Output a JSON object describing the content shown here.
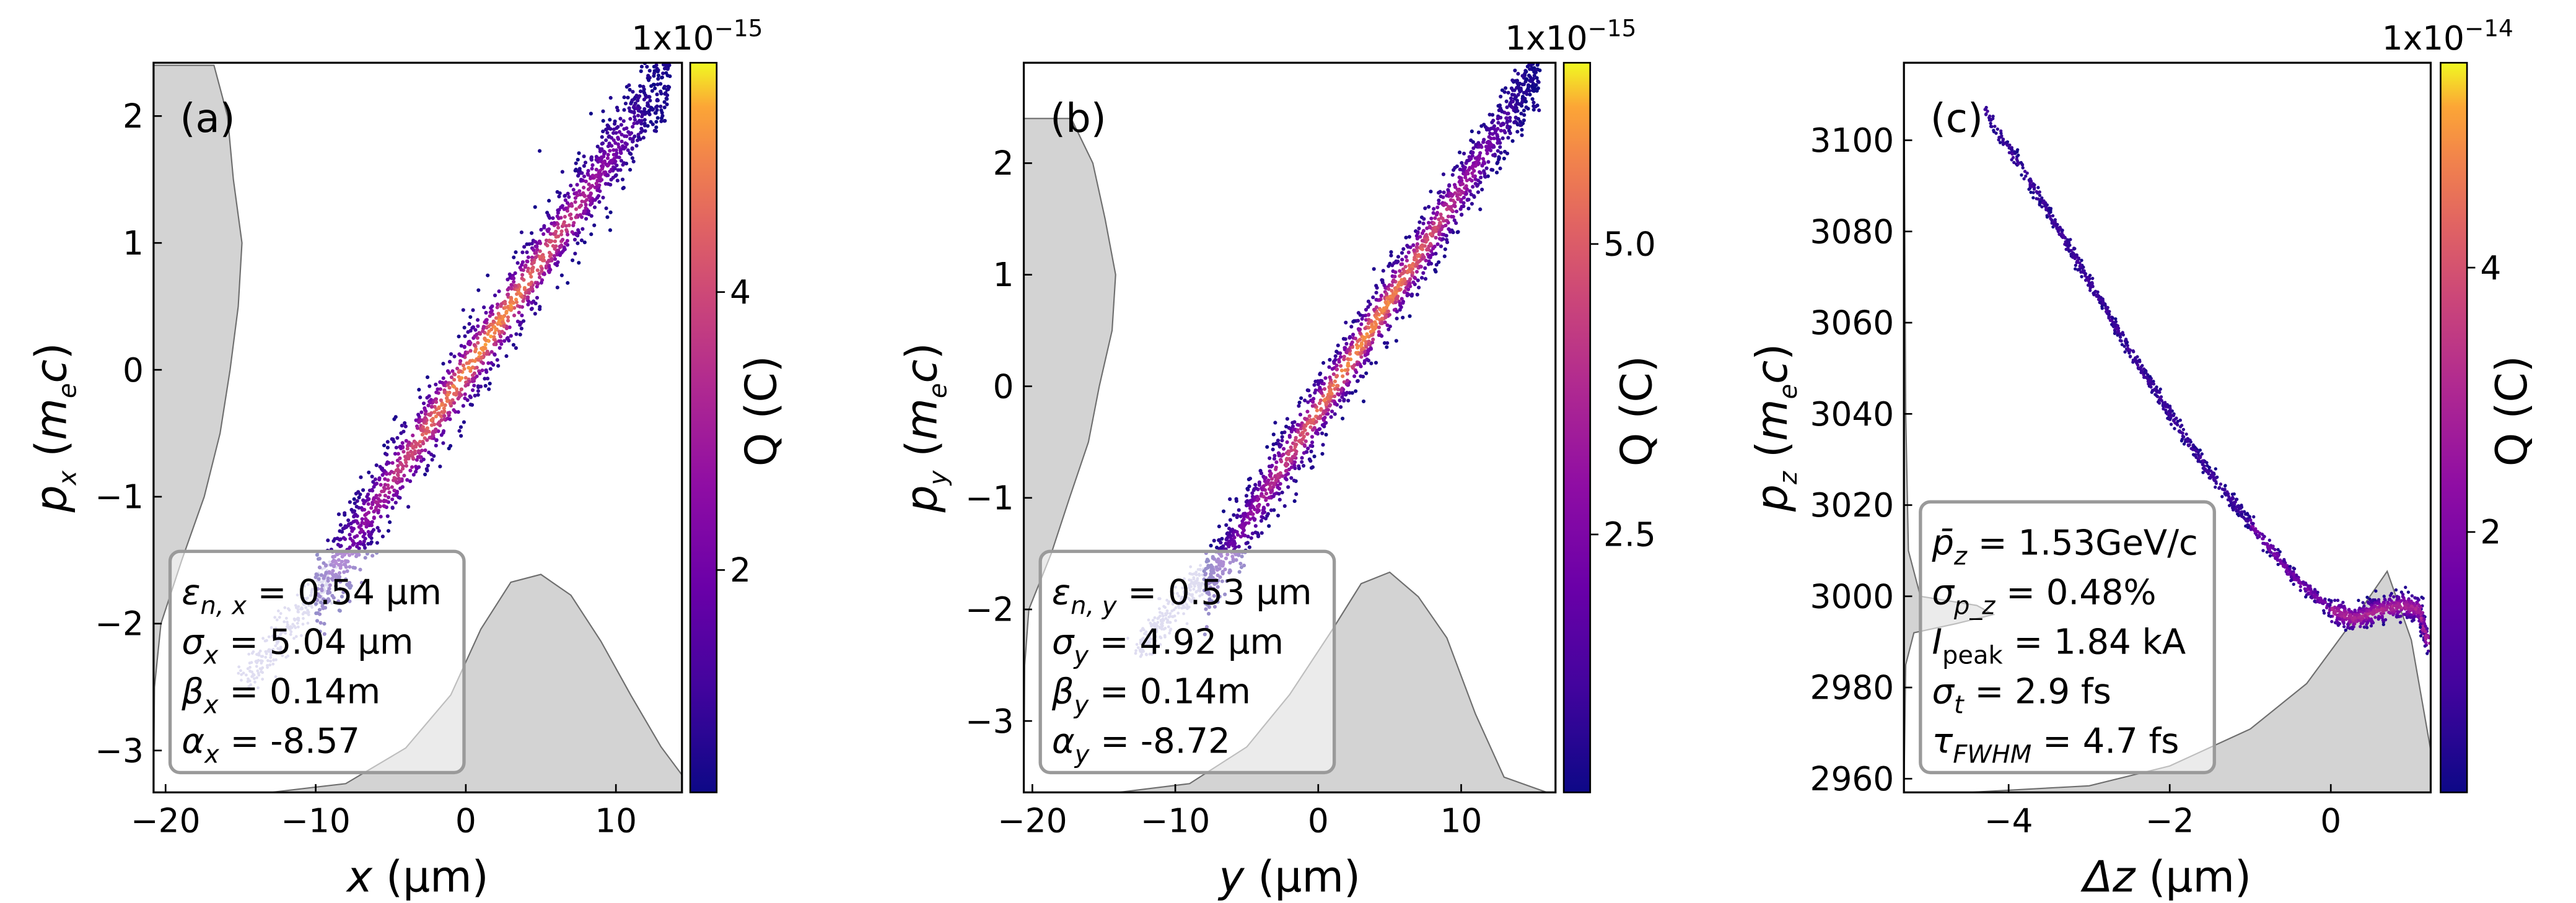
{
  "colors": {
    "hist_fill": "#d3d3d3",
    "hist_line": "#6e6e6e",
    "tail": "#b9b4e0",
    "box_edge": "#9a9a9a"
  },
  "chart_data": [
    {
      "type": "scatter",
      "panel_label": "(a)",
      "xlabel": {
        "var": "x",
        "unit": " (µm)"
      },
      "ylabel": {
        "var": "p",
        "sub": "x",
        "unit_pre": " (",
        "unit_var": "m",
        "unit_sub": "e",
        "unit_var2": "c",
        "unit_post": ")"
      },
      "xlim": [
        -20.8,
        14.4
      ],
      "ylim": [
        -3.33,
        2.42
      ],
      "xticks": [
        -20,
        -10,
        0,
        10
      ],
      "xtick_labels": [
        "−20",
        "−10",
        "0",
        "10"
      ],
      "yticks": [
        2,
        1,
        0,
        -1,
        -2,
        -3
      ],
      "ytick_labels": [
        "2",
        "1",
        "0",
        "−1",
        "−2",
        "−3"
      ],
      "colorbar": {
        "label": "Q (C)",
        "scale": "1x10",
        "exp": "−15",
        "range": [
          0.4,
          5.65
        ],
        "ticks": [
          2,
          4
        ],
        "tick_labels": [
          "2",
          "4"
        ]
      },
      "beam": {
        "start": [
          -10,
          -1.75
        ],
        "end": [
          13.6,
          2.35
        ],
        "width": 0.17
      },
      "tail": {
        "start": [
          -14.5,
          -2.45
        ],
        "end": [
          -9,
          -1.6
        ]
      },
      "annotation": {
        "l1": {
          "sym": "ε",
          "sub": "n, x",
          "val": " = 0.54 µm"
        },
        "l2": {
          "sym": "σ",
          "sub": "x",
          "val": " = 5.04 µm"
        },
        "l3": {
          "sym": "β",
          "sub": "x",
          "val": " = 0.14m"
        },
        "l4": {
          "sym": "α",
          "sub": "x",
          "val": " = -8.57"
        }
      },
      "y_hist": [
        [
          2.4,
          0.7
        ],
        [
          2.0,
          0.8
        ],
        [
          1.5,
          0.9
        ],
        [
          1.0,
          1.0
        ],
        [
          0.5,
          0.93
        ],
        [
          0,
          0.85
        ],
        [
          -0.5,
          0.75
        ],
        [
          -1.0,
          0.55
        ],
        [
          -1.5,
          0.3
        ],
        [
          -2.0,
          0.08
        ],
        [
          -2.5,
          0.01
        ],
        [
          -3.33,
          0
        ]
      ],
      "x_hist": [
        [
          -13,
          0
        ],
        [
          -8,
          0.04
        ],
        [
          -4,
          0.2
        ],
        [
          -1,
          0.45
        ],
        [
          1,
          0.75
        ],
        [
          3,
          0.95
        ],
        [
          5,
          1.0
        ],
        [
          7,
          0.9
        ],
        [
          9,
          0.7
        ],
        [
          11,
          0.45
        ],
        [
          13,
          0.2
        ],
        [
          14.4,
          0.08
        ]
      ]
    },
    {
      "type": "scatter",
      "panel_label": "(b)",
      "xlabel": {
        "var": "y",
        "unit": " (µm)"
      },
      "ylabel": {
        "var": "p",
        "sub": "y",
        "unit_pre": " (",
        "unit_var": "m",
        "unit_sub": "e",
        "unit_var2": "c",
        "unit_post": ")"
      },
      "xlim": [
        -20.6,
        16.6
      ],
      "ylim": [
        -3.64,
        2.9
      ],
      "xticks": [
        -20,
        -10,
        0,
        10
      ],
      "xtick_labels": [
        "−20",
        "−10",
        "0",
        "10"
      ],
      "yticks": [
        2,
        1,
        0,
        -1,
        -2,
        -3
      ],
      "ytick_labels": [
        "2",
        "1",
        "0",
        "−1",
        "−2",
        "−3"
      ],
      "colorbar": {
        "label": "Q (C)",
        "scale": "1x10",
        "exp": "−15",
        "range": [
          0.28,
          6.56
        ],
        "ticks": [
          2.5,
          5.0
        ],
        "tick_labels": [
          "2.5",
          "5.0"
        ]
      },
      "beam": {
        "start": [
          -8,
          -1.8
        ],
        "end": [
          15.5,
          2.85
        ],
        "width": 0.16
      },
      "tail": {
        "start": [
          -12.5,
          -2.35
        ],
        "end": [
          -8,
          -1.7
        ]
      },
      "annotation": {
        "l1": {
          "sym": "ε",
          "sub": "n, y",
          "val": " = 0.53 µm"
        },
        "l2": {
          "sym": "σ",
          "sub": "y",
          "val": " = 4.92 µm"
        },
        "l3": {
          "sym": "β",
          "sub": "y",
          "val": " = 0.14m"
        },
        "l4": {
          "sym": "α",
          "sub": "y",
          "val": " = -8.72"
        }
      },
      "y_hist": [
        [
          2.4,
          0.55
        ],
        [
          2.0,
          0.75
        ],
        [
          1.5,
          0.9
        ],
        [
          1.0,
          1.0
        ],
        [
          0.5,
          0.95
        ],
        [
          0,
          0.85
        ],
        [
          -0.5,
          0.7
        ],
        [
          -1.0,
          0.5
        ],
        [
          -1.5,
          0.28
        ],
        [
          -2.0,
          0.08
        ],
        [
          -2.5,
          0.01
        ],
        [
          -3.64,
          0
        ]
      ],
      "x_hist": [
        [
          -14,
          0
        ],
        [
          -9,
          0.04
        ],
        [
          -5,
          0.2
        ],
        [
          -2,
          0.45
        ],
        [
          1,
          0.75
        ],
        [
          3,
          0.95
        ],
        [
          5,
          1.0
        ],
        [
          7,
          0.9
        ],
        [
          9,
          0.7
        ],
        [
          11,
          0.35
        ],
        [
          13,
          0.08
        ],
        [
          16,
          0
        ]
      ]
    },
    {
      "type": "scatter",
      "panel_label": "(c)",
      "xlabel": {
        "var": "Δz",
        "unit": " (µm)"
      },
      "ylabel": {
        "var": "p",
        "sub": "z",
        "unit_pre": " (",
        "unit_var": "m",
        "unit_sub": "e",
        "unit_var2": "c",
        "unit_post": ")"
      },
      "xlim": [
        -5.3,
        1.24
      ],
      "ylim": [
        2957,
        3117
      ],
      "xticks": [
        -4,
        -2,
        0
      ],
      "xtick_labels": [
        "−4",
        "−2",
        "0"
      ],
      "yticks": [
        3100,
        3080,
        3060,
        3040,
        3020,
        3000,
        2980,
        2960
      ],
      "ytick_labels": [
        "3100",
        "3080",
        "3060",
        "3040",
        "3020",
        "3000",
        "2980",
        "2960"
      ],
      "colorbar": {
        "label": "Q (C)",
        "scale": "1x10",
        "exp": "−14",
        "range": [
          0.03,
          5.55
        ],
        "ticks": [
          2,
          4
        ],
        "tick_labels": [
          "2",
          "4"
        ]
      },
      "curve": [
        [
          -4.3,
          3107
        ],
        [
          -3.5,
          3084
        ],
        [
          -3,
          3069
        ],
        [
          -2.5,
          3054
        ],
        [
          -2,
          3040
        ],
        [
          -1.5,
          3027
        ],
        [
          -1,
          3016
        ],
        [
          -0.5,
          3005
        ],
        [
          0,
          2997
        ],
        [
          0.3,
          2995
        ],
        [
          0.6,
          2997
        ],
        [
          0.9,
          2998
        ],
        [
          1.1,
          2997
        ],
        [
          1.2,
          2990
        ]
      ],
      "annotation": {
        "l1": {
          "sym": "p̄",
          "sub": "z",
          "val": " = 1.53GeV/c"
        },
        "l2": {
          "sym": "σ",
          "sub": "p_z",
          "val": " = 0.48%"
        },
        "l3": {
          "sym": "I",
          "sub": "peak",
          "val": " = 1.84 kA"
        },
        "l4": {
          "sym": "σ",
          "sub": "t",
          "val": " = 2.9 fs"
        },
        "l5": {
          "sym": "τ",
          "sub": "FWHM",
          "val": " = 4.7 fs"
        }
      },
      "y_hist": [
        [
          3117,
          0
        ],
        [
          3040,
          0.02
        ],
        [
          3010,
          0.05
        ],
        [
          3000,
          0.2
        ],
        [
          2998,
          0.8
        ],
        [
          2996,
          1.0
        ],
        [
          2994,
          0.6
        ],
        [
          2992,
          0.1
        ],
        [
          2985,
          0.02
        ],
        [
          2957,
          0
        ]
      ],
      "x_hist": [
        [
          -4.5,
          0
        ],
        [
          -3,
          0.03
        ],
        [
          -2,
          0.12
        ],
        [
          -1,
          0.3
        ],
        [
          -0.3,
          0.5
        ],
        [
          0.3,
          0.8
        ],
        [
          0.7,
          1.0
        ],
        [
          1.0,
          0.7
        ],
        [
          1.24,
          0.2
        ]
      ]
    }
  ]
}
